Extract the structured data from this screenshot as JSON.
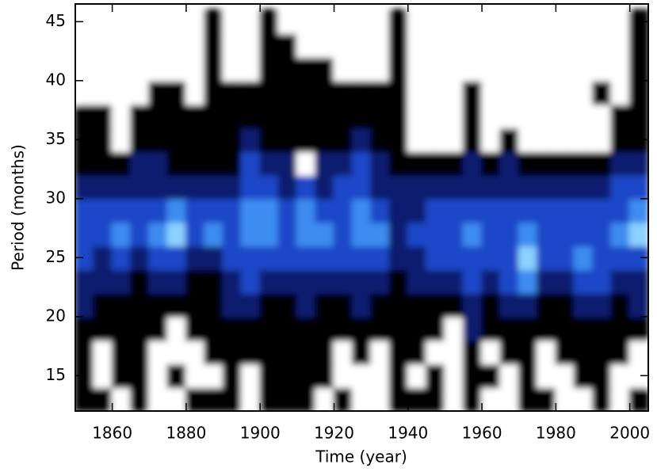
{
  "chart_data": {
    "type": "heatmap",
    "x_label": "Time (year)",
    "y_label": "Period (months)",
    "xlim": [
      1850,
      2005
    ],
    "ylim": [
      12,
      46.5
    ],
    "xticks": [
      1860,
      1880,
      1900,
      1920,
      1940,
      1960,
      1980,
      2000
    ],
    "yticks": [
      15,
      20,
      25,
      30,
      35,
      40,
      45
    ],
    "colors": [
      "#ffffff",
      "#000000",
      "#0a1a6e",
      "#1e46c8",
      "#3c8cf0",
      "#8cd2ff"
    ],
    "x": [
      1852.5,
      1857.5,
      1862.5,
      1867.5,
      1872.5,
      1877.5,
      1882.5,
      1887.5,
      1892.5,
      1897.5,
      1902.5,
      1907.5,
      1912.5,
      1917.5,
      1922.5,
      1927.5,
      1932.5,
      1937.5,
      1942.5,
      1947.5,
      1952.5,
      1957.5,
      1962.5,
      1967.5,
      1972.5,
      1977.5,
      1982.5,
      1987.5,
      1992.5,
      1997.5,
      2002.5
    ],
    "y": [
      13,
      15,
      17,
      19,
      21,
      23,
      25,
      27,
      29,
      31,
      33,
      35,
      37,
      39,
      41,
      43,
      45
    ],
    "z": [
      [
        1,
        1,
        0,
        1,
        0,
        0,
        1,
        1,
        1,
        0,
        1,
        1,
        1,
        0,
        1,
        0,
        0,
        1,
        1,
        1,
        0,
        1,
        0,
        0,
        1,
        1,
        0,
        0,
        1,
        0,
        1
      ],
      [
        1,
        0,
        1,
        1,
        0,
        1,
        0,
        0,
        1,
        0,
        1,
        1,
        1,
        1,
        0,
        0,
        0,
        1,
        0,
        1,
        0,
        1,
        1,
        0,
        1,
        0,
        0,
        1,
        1,
        0,
        0
      ],
      [
        1,
        0,
        1,
        1,
        0,
        0,
        0,
        1,
        1,
        1,
        1,
        1,
        1,
        1,
        0,
        1,
        0,
        1,
        1,
        0,
        0,
        1,
        0,
        1,
        1,
        0,
        1,
        1,
        1,
        1,
        0
      ],
      [
        1,
        1,
        1,
        1,
        1,
        0,
        1,
        1,
        1,
        1,
        1,
        1,
        1,
        1,
        1,
        1,
        1,
        1,
        1,
        1,
        0,
        2,
        1,
        1,
        1,
        1,
        1,
        1,
        1,
        1,
        1
      ],
      [
        2,
        1,
        1,
        1,
        1,
        1,
        1,
        1,
        2,
        2,
        1,
        1,
        2,
        1,
        1,
        2,
        1,
        1,
        1,
        1,
        1,
        2,
        1,
        2,
        2,
        1,
        1,
        2,
        2,
        1,
        2
      ],
      [
        2,
        2,
        2,
        1,
        2,
        2,
        1,
        1,
        2,
        3,
        2,
        2,
        2,
        2,
        2,
        2,
        2,
        1,
        2,
        2,
        2,
        3,
        2,
        3,
        4,
        2,
        2,
        3,
        3,
        2,
        2
      ],
      [
        3,
        2,
        3,
        2,
        3,
        3,
        2,
        2,
        3,
        3,
        3,
        3,
        3,
        3,
        3,
        3,
        3,
        2,
        2,
        3,
        3,
        3,
        3,
        3,
        5,
        3,
        3,
        4,
        3,
        3,
        3
      ],
      [
        3,
        3,
        4,
        3,
        4,
        5,
        3,
        4,
        3,
        4,
        4,
        3,
        4,
        4,
        3,
        4,
        4,
        2,
        3,
        3,
        3,
        4,
        3,
        3,
        4,
        3,
        3,
        3,
        3,
        4,
        5
      ],
      [
        3,
        3,
        3,
        3,
        3,
        4,
        3,
        3,
        3,
        4,
        4,
        3,
        4,
        3,
        3,
        4,
        3,
        2,
        2,
        3,
        3,
        3,
        3,
        3,
        3,
        3,
        3,
        3,
        3,
        3,
        4
      ],
      [
        2,
        2,
        2,
        2,
        2,
        2,
        2,
        2,
        2,
        3,
        3,
        2,
        3,
        2,
        3,
        3,
        2,
        2,
        2,
        2,
        2,
        2,
        2,
        2,
        2,
        2,
        2,
        2,
        2,
        3,
        3
      ],
      [
        1,
        1,
        1,
        2,
        2,
        1,
        1,
        1,
        1,
        3,
        2,
        2,
        0,
        2,
        2,
        3,
        2,
        1,
        1,
        1,
        1,
        2,
        1,
        2,
        1,
        1,
        1,
        1,
        1,
        2,
        2
      ],
      [
        1,
        1,
        0,
        1,
        1,
        1,
        1,
        1,
        1,
        2,
        1,
        1,
        1,
        1,
        1,
        2,
        1,
        1,
        0,
        0,
        0,
        1,
        0,
        1,
        0,
        0,
        0,
        0,
        0,
        1,
        1
      ],
      [
        1,
        1,
        0,
        1,
        1,
        1,
        1,
        1,
        1,
        1,
        1,
        1,
        1,
        1,
        1,
        1,
        1,
        1,
        0,
        0,
        0,
        1,
        0,
        0,
        0,
        0,
        0,
        0,
        0,
        1,
        1
      ],
      [
        0,
        0,
        0,
        0,
        1,
        1,
        0,
        1,
        1,
        1,
        1,
        1,
        1,
        1,
        1,
        1,
        1,
        1,
        0,
        0,
        0,
        1,
        0,
        0,
        0,
        0,
        0,
        0,
        1,
        0,
        1
      ],
      [
        0,
        0,
        0,
        0,
        0,
        0,
        0,
        1,
        0,
        0,
        1,
        1,
        1,
        1,
        0,
        0,
        0,
        1,
        0,
        0,
        0,
        0,
        0,
        0,
        0,
        0,
        0,
        0,
        0,
        0,
        1
      ],
      [
        0,
        0,
        0,
        0,
        0,
        0,
        0,
        1,
        0,
        0,
        1,
        1,
        0,
        0,
        0,
        0,
        0,
        1,
        0,
        0,
        0,
        0,
        0,
        0,
        0,
        0,
        0,
        0,
        0,
        0,
        1
      ],
      [
        0,
        0,
        0,
        0,
        0,
        0,
        0,
        1,
        0,
        0,
        1,
        0,
        0,
        0,
        0,
        0,
        0,
        1,
        0,
        0,
        0,
        0,
        0,
        0,
        0,
        0,
        0,
        0,
        0,
        0,
        1
      ]
    ]
  }
}
